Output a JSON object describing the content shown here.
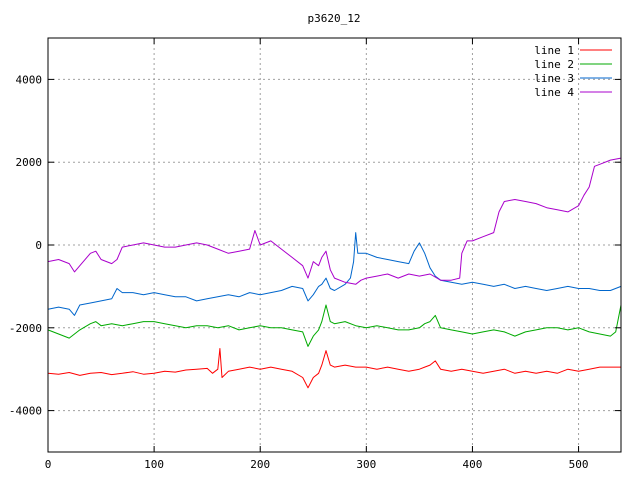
{
  "chart_data": {
    "type": "line",
    "title": "p3620_12",
    "xlabel": "",
    "ylabel": "",
    "xlim": [
      0,
      540
    ],
    "ylim": [
      -5000,
      5000
    ],
    "xticks": [
      0,
      100,
      200,
      300,
      400,
      500
    ],
    "yticks": [
      -4000,
      -2000,
      0,
      2000,
      4000
    ],
    "grid": true,
    "legend_position": "top-right",
    "series": [
      {
        "name": "line 1",
        "color": "#ff0000",
        "points": [
          [
            0,
            -3100
          ],
          [
            10,
            -3120
          ],
          [
            20,
            -3080
          ],
          [
            30,
            -3150
          ],
          [
            40,
            -3100
          ],
          [
            50,
            -3080
          ],
          [
            60,
            -3130
          ],
          [
            70,
            -3100
          ],
          [
            80,
            -3060
          ],
          [
            90,
            -3120
          ],
          [
            100,
            -3100
          ],
          [
            110,
            -3050
          ],
          [
            120,
            -3070
          ],
          [
            130,
            -3020
          ],
          [
            140,
            -3000
          ],
          [
            150,
            -2980
          ],
          [
            155,
            -3100
          ],
          [
            160,
            -3000
          ],
          [
            162,
            -2500
          ],
          [
            164,
            -3200
          ],
          [
            170,
            -3050
          ],
          [
            180,
            -3000
          ],
          [
            190,
            -2950
          ],
          [
            200,
            -3000
          ],
          [
            210,
            -2950
          ],
          [
            220,
            -3000
          ],
          [
            230,
            -3050
          ],
          [
            240,
            -3200
          ],
          [
            245,
            -3450
          ],
          [
            250,
            -3200
          ],
          [
            255,
            -3100
          ],
          [
            258,
            -2900
          ],
          [
            262,
            -2550
          ],
          [
            266,
            -2900
          ],
          [
            270,
            -2950
          ],
          [
            280,
            -2900
          ],
          [
            290,
            -2950
          ],
          [
            300,
            -2950
          ],
          [
            310,
            -3000
          ],
          [
            320,
            -2950
          ],
          [
            330,
            -3000
          ],
          [
            340,
            -3050
          ],
          [
            350,
            -3000
          ],
          [
            355,
            -2950
          ],
          [
            360,
            -2900
          ],
          [
            365,
            -2800
          ],
          [
            370,
            -3000
          ],
          [
            380,
            -3050
          ],
          [
            390,
            -3000
          ],
          [
            400,
            -3050
          ],
          [
            410,
            -3100
          ],
          [
            420,
            -3050
          ],
          [
            430,
            -3000
          ],
          [
            440,
            -3100
          ],
          [
            450,
            -3050
          ],
          [
            460,
            -3100
          ],
          [
            470,
            -3050
          ],
          [
            480,
            -3100
          ],
          [
            490,
            -3000
          ],
          [
            500,
            -3050
          ],
          [
            510,
            -3000
          ],
          [
            520,
            -2950
          ],
          [
            530,
            -2950
          ],
          [
            540,
            -2950
          ]
        ]
      },
      {
        "name": "line 2",
        "color": "#00aa00",
        "points": [
          [
            0,
            -2050
          ],
          [
            10,
            -2150
          ],
          [
            20,
            -2250
          ],
          [
            30,
            -2050
          ],
          [
            40,
            -1900
          ],
          [
            45,
            -1850
          ],
          [
            50,
            -1950
          ],
          [
            60,
            -1900
          ],
          [
            70,
            -1950
          ],
          [
            80,
            -1900
          ],
          [
            90,
            -1850
          ],
          [
            100,
            -1850
          ],
          [
            110,
            -1900
          ],
          [
            120,
            -1950
          ],
          [
            130,
            -2000
          ],
          [
            140,
            -1950
          ],
          [
            150,
            -1950
          ],
          [
            160,
            -2000
          ],
          [
            170,
            -1950
          ],
          [
            180,
            -2050
          ],
          [
            190,
            -2000
          ],
          [
            200,
            -1950
          ],
          [
            210,
            -2000
          ],
          [
            220,
            -2000
          ],
          [
            230,
            -2050
          ],
          [
            240,
            -2100
          ],
          [
            245,
            -2450
          ],
          [
            250,
            -2200
          ],
          [
            255,
            -2050
          ],
          [
            258,
            -1850
          ],
          [
            262,
            -1450
          ],
          [
            266,
            -1850
          ],
          [
            270,
            -1900
          ],
          [
            280,
            -1850
          ],
          [
            290,
            -1950
          ],
          [
            300,
            -2000
          ],
          [
            310,
            -1950
          ],
          [
            320,
            -2000
          ],
          [
            330,
            -2050
          ],
          [
            340,
            -2050
          ],
          [
            350,
            -2000
          ],
          [
            355,
            -1900
          ],
          [
            360,
            -1850
          ],
          [
            365,
            -1700
          ],
          [
            370,
            -2000
          ],
          [
            380,
            -2050
          ],
          [
            390,
            -2100
          ],
          [
            400,
            -2150
          ],
          [
            410,
            -2100
          ],
          [
            420,
            -2050
          ],
          [
            430,
            -2100
          ],
          [
            440,
            -2200
          ],
          [
            450,
            -2100
          ],
          [
            460,
            -2050
          ],
          [
            470,
            -2000
          ],
          [
            480,
            -2000
          ],
          [
            490,
            -2050
          ],
          [
            500,
            -2000
          ],
          [
            510,
            -2100
          ],
          [
            520,
            -2150
          ],
          [
            530,
            -2200
          ],
          [
            535,
            -2100
          ],
          [
            540,
            -1450
          ]
        ]
      },
      {
        "name": "line 3",
        "color": "#0066cc",
        "points": [
          [
            0,
            -1550
          ],
          [
            10,
            -1500
          ],
          [
            20,
            -1550
          ],
          [
            25,
            -1700
          ],
          [
            30,
            -1450
          ],
          [
            40,
            -1400
          ],
          [
            50,
            -1350
          ],
          [
            60,
            -1300
          ],
          [
            65,
            -1050
          ],
          [
            70,
            -1150
          ],
          [
            80,
            -1150
          ],
          [
            90,
            -1200
          ],
          [
            100,
            -1150
          ],
          [
            110,
            -1200
          ],
          [
            120,
            -1250
          ],
          [
            130,
            -1250
          ],
          [
            140,
            -1350
          ],
          [
            150,
            -1300
          ],
          [
            160,
            -1250
          ],
          [
            170,
            -1200
          ],
          [
            180,
            -1250
          ],
          [
            190,
            -1150
          ],
          [
            200,
            -1200
          ],
          [
            210,
            -1150
          ],
          [
            220,
            -1100
          ],
          [
            230,
            -1000
          ],
          [
            240,
            -1050
          ],
          [
            245,
            -1350
          ],
          [
            250,
            -1200
          ],
          [
            255,
            -1000
          ],
          [
            258,
            -950
          ],
          [
            262,
            -800
          ],
          [
            266,
            -1050
          ],
          [
            270,
            -1100
          ],
          [
            280,
            -950
          ],
          [
            285,
            -800
          ],
          [
            288,
            -400
          ],
          [
            290,
            300
          ],
          [
            292,
            -200
          ],
          [
            300,
            -200
          ],
          [
            310,
            -300
          ],
          [
            320,
            -350
          ],
          [
            330,
            -400
          ],
          [
            340,
            -450
          ],
          [
            345,
            -150
          ],
          [
            350,
            50
          ],
          [
            355,
            -200
          ],
          [
            360,
            -550
          ],
          [
            365,
            -750
          ],
          [
            370,
            -850
          ],
          [
            380,
            -900
          ],
          [
            390,
            -950
          ],
          [
            400,
            -900
          ],
          [
            410,
            -950
          ],
          [
            420,
            -1000
          ],
          [
            430,
            -950
          ],
          [
            440,
            -1050
          ],
          [
            450,
            -1000
          ],
          [
            460,
            -1050
          ],
          [
            470,
            -1100
          ],
          [
            480,
            -1050
          ],
          [
            490,
            -1000
          ],
          [
            500,
            -1050
          ],
          [
            510,
            -1050
          ],
          [
            520,
            -1100
          ],
          [
            530,
            -1100
          ],
          [
            540,
            -1000
          ]
        ]
      },
      {
        "name": "line 4",
        "color": "#aa00cc",
        "points": [
          [
            0,
            -400
          ],
          [
            10,
            -350
          ],
          [
            20,
            -450
          ],
          [
            25,
            -650
          ],
          [
            30,
            -500
          ],
          [
            40,
            -200
          ],
          [
            45,
            -150
          ],
          [
            50,
            -350
          ],
          [
            60,
            -450
          ],
          [
            65,
            -350
          ],
          [
            70,
            -50
          ],
          [
            80,
            0
          ],
          [
            90,
            50
          ],
          [
            100,
            0
          ],
          [
            110,
            -50
          ],
          [
            120,
            -50
          ],
          [
            130,
            0
          ],
          [
            140,
            50
          ],
          [
            150,
            0
          ],
          [
            160,
            -100
          ],
          [
            170,
            -200
          ],
          [
            180,
            -150
          ],
          [
            190,
            -100
          ],
          [
            195,
            350
          ],
          [
            200,
            0
          ],
          [
            210,
            100
          ],
          [
            220,
            -100
          ],
          [
            230,
            -300
          ],
          [
            240,
            -500
          ],
          [
            245,
            -800
          ],
          [
            250,
            -400
          ],
          [
            255,
            -500
          ],
          [
            258,
            -300
          ],
          [
            262,
            -150
          ],
          [
            266,
            -600
          ],
          [
            270,
            -800
          ],
          [
            280,
            -900
          ],
          [
            290,
            -950
          ],
          [
            295,
            -850
          ],
          [
            300,
            -800
          ],
          [
            310,
            -750
          ],
          [
            320,
            -700
          ],
          [
            330,
            -800
          ],
          [
            340,
            -700
          ],
          [
            350,
            -750
          ],
          [
            360,
            -700
          ],
          [
            370,
            -850
          ],
          [
            380,
            -850
          ],
          [
            388,
            -800
          ],
          [
            390,
            -200
          ],
          [
            395,
            100
          ],
          [
            400,
            100
          ],
          [
            410,
            200
          ],
          [
            420,
            300
          ],
          [
            425,
            800
          ],
          [
            430,
            1050
          ],
          [
            440,
            1100
          ],
          [
            450,
            1050
          ],
          [
            460,
            1000
          ],
          [
            470,
            900
          ],
          [
            480,
            850
          ],
          [
            490,
            800
          ],
          [
            500,
            950
          ],
          [
            505,
            1200
          ],
          [
            510,
            1400
          ],
          [
            515,
            1900
          ],
          [
            520,
            1950
          ],
          [
            530,
            2050
          ],
          [
            540,
            2100
          ]
        ]
      }
    ]
  }
}
